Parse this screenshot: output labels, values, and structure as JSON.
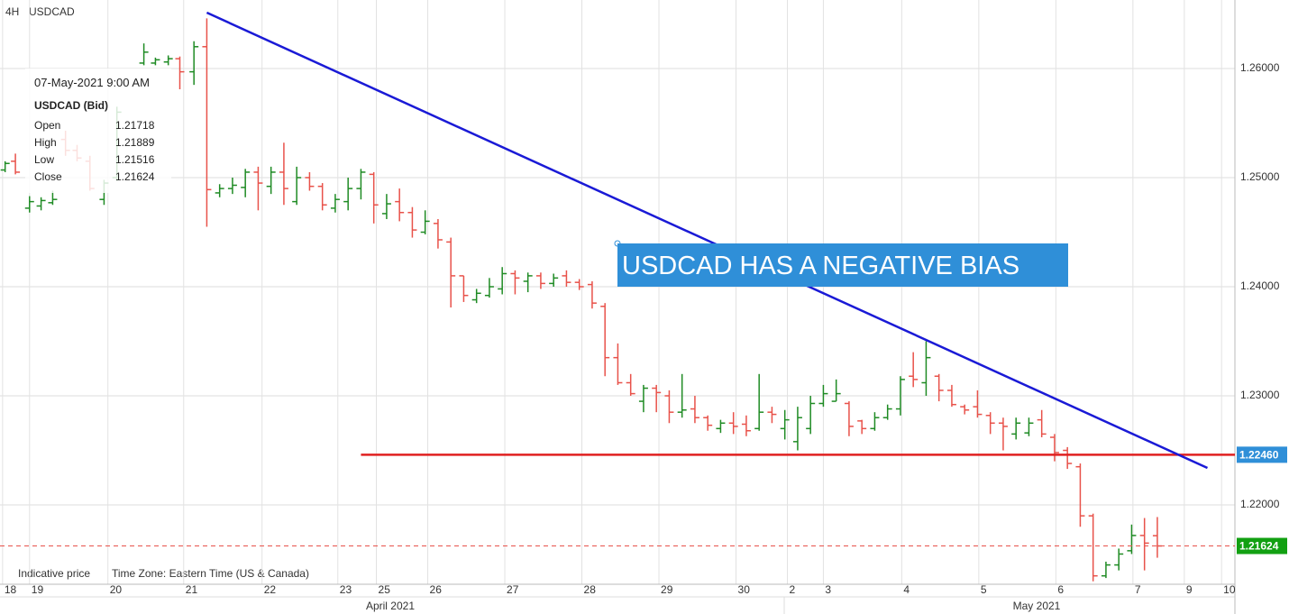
{
  "chart_data": {
    "type": "ohlc",
    "timeframe": "4H",
    "symbol": "USDCAD",
    "up_color": "#1f8b24",
    "down_color": "#e8524a",
    "grid": true,
    "x": [
      0.4,
      1.2,
      2.3,
      3.2,
      4.1,
      5.1,
      6.0,
      7.0,
      8.1,
      9.1,
      11.2,
      12.1,
      13.1,
      14.0,
      15.1,
      16.1,
      17.1,
      18.1,
      19.1,
      20.1,
      21.1,
      22.1,
      23.1,
      24.1,
      25.1,
      26.1,
      27.1,
      28.1,
      29.1,
      30.1,
      31.1,
      32.1,
      33.1,
      34.1,
      35.1,
      36.1,
      37.1,
      38.1,
      39.1,
      40.1,
      41.1,
      42.1,
      43.1,
      44.1,
      45.1,
      46.1,
      47.1,
      48.1,
      49.1,
      50.1,
      51.1,
      52.1,
      53.1,
      54.1,
      55.1,
      56.1,
      57.1,
      58.1,
      59.1,
      60.1,
      61.1,
      62.1,
      63.1,
      64.1,
      65.1,
      66.1,
      67.1,
      68.1,
      69.1,
      70.1,
      71.1,
      72.1,
      73.1,
      74.1,
      75.1,
      76.1,
      77.1,
      78.1,
      79.1,
      80.1,
      81.1,
      82.1,
      83.1,
      84.1,
      85.1,
      86.1,
      87.1,
      88.1,
      89.1,
      90.1
    ],
    "open": [
      1.2507,
      1.2515,
      1.2472,
      1.2474,
      1.2477,
      1.2535,
      1.2525,
      1.2515,
      1.248,
      1.25,
      1.2605,
      1.2605,
      1.2606,
      1.2609,
      1.2597,
      1.262,
      1.2486,
      1.249,
      1.2491,
      1.2505,
      1.2492,
      1.2505,
      1.2478,
      1.25,
      1.2492,
      1.2472,
      1.2478,
      1.249,
      1.2503,
      1.2467,
      1.2478,
      1.2468,
      1.245,
      1.2458,
      1.2441,
      1.241,
      1.2388,
      1.2392,
      1.2398,
      1.2412,
      1.2405,
      1.241,
      1.2403,
      1.241,
      1.2404,
      1.2402,
      1.2382,
      1.2335,
      1.2312,
      1.2295,
      1.2307,
      1.23,
      1.2285,
      1.2288,
      1.228,
      1.227,
      1.2275,
      1.2274,
      1.227,
      1.2285,
      1.227,
      1.2258,
      1.227,
      1.2293,
      1.2295,
      1.2293,
      1.2277,
      1.227,
      1.228,
      1.2288,
      1.2318,
      1.2312,
      1.2318,
      1.2305,
      1.229,
      1.229,
      1.2282,
      1.2275,
      1.2265,
      1.2266,
      1.2278,
      1.2262,
      1.225,
      1.2235,
      1.219,
      1.2135,
      1.2145,
      1.2158,
      1.2172,
      1.21718
    ],
    "high": [
      1.2515,
      1.2522,
      1.2483,
      1.2482,
      1.2488,
      1.2543,
      1.253,
      1.252,
      1.2498,
      1.2565,
      1.2623,
      1.261,
      1.2612,
      1.2611,
      1.2625,
      1.2646,
      1.2494,
      1.25,
      1.2508,
      1.251,
      1.251,
      1.2532,
      1.251,
      1.2505,
      1.2495,
      1.2485,
      1.25,
      1.2508,
      1.2505,
      1.2485,
      1.249,
      1.2473,
      1.247,
      1.2462,
      1.2445,
      1.241,
      1.2398,
      1.2408,
      1.2418,
      1.2415,
      1.2413,
      1.2413,
      1.2412,
      1.2415,
      1.2407,
      1.2405,
      1.2385,
      1.2348,
      1.232,
      1.231,
      1.231,
      1.2305,
      1.232,
      1.23,
      1.2282,
      1.2278,
      1.2285,
      1.2282,
      1.232,
      1.229,
      1.2287,
      1.229,
      1.23,
      1.231,
      1.2315,
      1.2295,
      1.2278,
      1.2285,
      1.2292,
      1.2318,
      1.234,
      1.235,
      1.232,
      1.231,
      1.2292,
      1.2305,
      1.2285,
      1.228,
      1.228,
      1.228,
      1.2287,
      1.2265,
      1.2253,
      1.2238,
      1.2192,
      1.2148,
      1.216,
      1.2182,
      1.2188,
      1.21889
    ],
    "low": [
      1.2505,
      1.2503,
      1.2468,
      1.247,
      1.2475,
      1.252,
      1.2515,
      1.2488,
      1.2475,
      1.2497,
      1.2603,
      1.2603,
      1.2603,
      1.2581,
      1.2585,
      1.2455,
      1.2482,
      1.2485,
      1.2482,
      1.247,
      1.2485,
      1.2475,
      1.2475,
      1.2488,
      1.247,
      1.2468,
      1.247,
      1.248,
      1.2458,
      1.2462,
      1.246,
      1.2445,
      1.2448,
      1.2435,
      1.2381,
      1.2386,
      1.2385,
      1.239,
      1.2393,
      1.2393,
      1.2395,
      1.2398,
      1.24,
      1.24,
      1.2397,
      1.238,
      1.2318,
      1.231,
      1.23,
      1.2285,
      1.2285,
      1.2275,
      1.228,
      1.2275,
      1.2268,
      1.2266,
      1.2265,
      1.2263,
      1.2268,
      1.2275,
      1.226,
      1.225,
      1.2265,
      1.229,
      1.2295,
      1.2263,
      1.2265,
      1.2268,
      1.2278,
      1.2282,
      1.2308,
      1.23,
      1.2295,
      1.229,
      1.2283,
      1.228,
      1.2265,
      1.225,
      1.226,
      1.2263,
      1.2262,
      1.224,
      1.2233,
      1.218,
      1.213,
      1.2133,
      1.214,
      1.2155,
      1.214,
      1.21516
    ],
    "close": [
      1.2513,
      1.2505,
      1.2478,
      1.2479,
      1.248,
      1.2525,
      1.2518,
      1.249,
      1.2495,
      1.256,
      1.2615,
      1.2608,
      1.2609,
      1.2597,
      1.262,
      1.2489,
      1.249,
      1.2493,
      1.2505,
      1.2495,
      1.2505,
      1.249,
      1.25,
      1.2492,
      1.2475,
      1.248,
      1.249,
      1.2505,
      1.2475,
      1.2476,
      1.2468,
      1.2452,
      1.246,
      1.2443,
      1.241,
      1.2392,
      1.2394,
      1.24,
      1.2412,
      1.2408,
      1.241,
      1.2403,
      1.2408,
      1.2404,
      1.24,
      1.2385,
      1.2335,
      1.2312,
      1.2302,
      1.2307,
      1.2303,
      1.2285,
      1.2287,
      1.228,
      1.2273,
      1.2275,
      1.2272,
      1.2268,
      1.2285,
      1.2283,
      1.2278,
      1.228,
      1.2293,
      1.2302,
      1.2302,
      1.2272,
      1.227,
      1.228,
      1.2288,
      1.2315,
      1.2315,
      1.2335,
      1.2305,
      1.2292,
      1.2287,
      1.2283,
      1.2275,
      1.2272,
      1.2275,
      1.2275,
      1.2265,
      1.2248,
      1.2238,
      1.219,
      1.2135,
      1.2145,
      1.2155,
      1.2172,
      1.2165,
      1.21624
    ],
    "xlim": [
      0,
      96.14
    ],
    "ylim": [
      1.21273,
      1.26628
    ],
    "yticks": [
      {
        "value": 1.22,
        "label": "1.22000"
      },
      {
        "value": 1.23,
        "label": "1.23000"
      },
      {
        "value": 1.24,
        "label": "1.24000"
      },
      {
        "value": 1.25,
        "label": "1.25000"
      },
      {
        "value": 1.26,
        "label": "1.26000"
      }
    ],
    "xticks": [
      {
        "value": 0.2,
        "label": "18"
      },
      {
        "value": 2.3,
        "label": "19"
      },
      {
        "value": 8.4,
        "label": "20"
      },
      {
        "value": 14.3,
        "label": "21"
      },
      {
        "value": 20.4,
        "label": "22"
      },
      {
        "value": 26.3,
        "label": "23"
      },
      {
        "value": 29.3,
        "label": "25"
      },
      {
        "value": 33.3,
        "label": "26"
      },
      {
        "value": 39.3,
        "label": "27"
      },
      {
        "value": 45.3,
        "label": "28"
      },
      {
        "value": 51.3,
        "label": "29"
      },
      {
        "value": 57.3,
        "label": "30"
      },
      {
        "value": 61.3,
        "label": "2"
      },
      {
        "value": 64.1,
        "label": "3"
      },
      {
        "value": 70.2,
        "label": "4"
      },
      {
        "value": 76.2,
        "label": "5"
      },
      {
        "value": 82.2,
        "label": "6"
      },
      {
        "value": 88.2,
        "label": "7"
      },
      {
        "value": 92.2,
        "label": "9"
      },
      {
        "value": 95.1,
        "label": "10"
      }
    ],
    "months": [
      "April 2021",
      "May 2021"
    ],
    "trendline": {
      "x": [
        16.1,
        94.0
      ],
      "y": [
        1.26512,
        1.22339
      ],
      "color": "#1a1ad6"
    },
    "level_line": {
      "x": [
        28.1,
        96.14
      ],
      "y": {
        "value": 1.2246,
        "label": "1.22460"
      },
      "color": "#e02020",
      "label_color": "#2f8fd8"
    },
    "price_line": {
      "y": {
        "value": 1.21624,
        "label": "1.21624"
      },
      "color": "#e8524a",
      "label_color": "#12a012"
    },
    "annotation": "USDCAD HAS A NEGATIVE BIAS",
    "tooltip": {
      "date": "07-May-2021 9:00 AM",
      "heading": "USDCAD (Bid)",
      "rows": [
        [
          "Open",
          "1.21718"
        ],
        [
          "High",
          "1.21889"
        ],
        [
          "Low",
          "1.21516"
        ],
        [
          "Close",
          "1.21624"
        ]
      ]
    },
    "footer": [
      "Indicative price",
      "Time Zone: Eastern Time (US & Canada)"
    ]
  }
}
